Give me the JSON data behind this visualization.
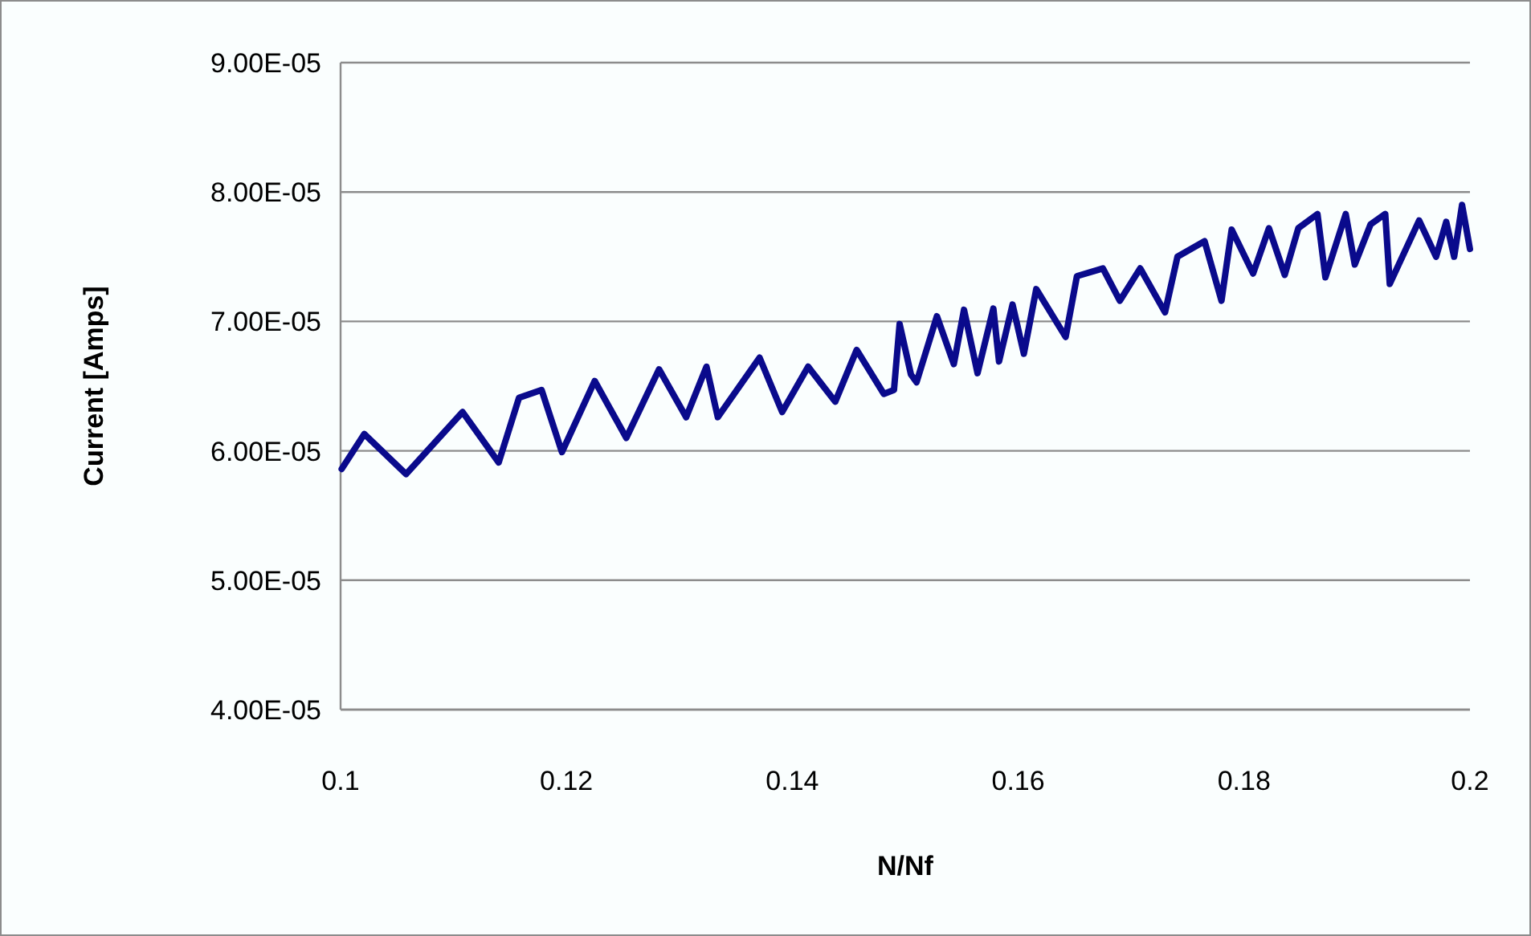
{
  "chart_data": {
    "type": "line",
    "xlabel": "N/Nf",
    "ylabel": "Current [Amps]",
    "x": [
      0.1001,
      0.1021,
      0.1058,
      0.1108,
      0.114,
      0.1158,
      0.1178,
      0.1196,
      0.1225,
      0.1253,
      0.1282,
      0.1306,
      0.1324,
      0.1334,
      0.1371,
      0.1391,
      0.1414,
      0.1438,
      0.1457,
      0.1481,
      0.149,
      0.1495,
      0.1505,
      0.151,
      0.1528,
      0.1543,
      0.1552,
      0.1564,
      0.1578,
      0.1583,
      0.1595,
      0.1605,
      0.1616,
      0.1642,
      0.1652,
      0.1675,
      0.169,
      0.1708,
      0.173,
      0.1741,
      0.1765,
      0.178,
      0.1789,
      0.1808,
      0.1822,
      0.1836,
      0.1848,
      0.1865,
      0.1872,
      0.189,
      0.1898,
      0.1912,
      0.1925,
      0.1929,
      0.1955,
      0.197,
      0.1979,
      0.1986,
      0.1993,
      0.2
    ],
    "series": [
      {
        "color": "#0a0a8c",
        "values": [
          5.86e-05,
          6.13e-05,
          5.82e-05,
          6.3e-05,
          5.91e-05,
          6.41e-05,
          6.47e-05,
          5.99e-05,
          6.54e-05,
          6.1e-05,
          6.63e-05,
          6.26e-05,
          6.65e-05,
          6.26e-05,
          6.72e-05,
          6.3e-05,
          6.65e-05,
          6.38e-05,
          6.78e-05,
          6.44e-05,
          6.47e-05,
          6.98e-05,
          6.59e-05,
          6.53e-05,
          7.04e-05,
          6.67e-05,
          7.09e-05,
          6.6e-05,
          7.1e-05,
          6.69e-05,
          7.13e-05,
          6.75e-05,
          7.25e-05,
          6.88e-05,
          7.35e-05,
          7.41e-05,
          7.16e-05,
          7.41e-05,
          7.07e-05,
          7.5e-05,
          7.62e-05,
          7.16e-05,
          7.71e-05,
          7.37e-05,
          7.72e-05,
          7.36e-05,
          7.72e-05,
          7.83e-05,
          7.34e-05,
          7.83e-05,
          7.44e-05,
          7.75e-05,
          7.83e-05,
          7.29e-05,
          7.78e-05,
          7.5e-05,
          7.77e-05,
          7.5e-05,
          7.9e-05,
          7.56e-05
        ]
      }
    ],
    "xlim": [
      0.1,
      0.2
    ],
    "xticks": [
      0.1,
      0.12,
      0.14,
      0.16,
      0.18,
      0.2
    ],
    "ylim": [
      4e-05,
      9e-05
    ],
    "yticks": [
      {
        "value": 4e-05,
        "label": "4.00E-05"
      },
      {
        "value": 5e-05,
        "label": "5.00E-05"
      },
      {
        "value": 6e-05,
        "label": "6.00E-05"
      },
      {
        "value": 7e-05,
        "label": "7.00E-05"
      },
      {
        "value": 8e-05,
        "label": "8.00E-05"
      },
      {
        "value": 9e-05,
        "label": "9.00E-05"
      }
    ],
    "grid": "y",
    "marker": "none",
    "line_style": "solid"
  }
}
